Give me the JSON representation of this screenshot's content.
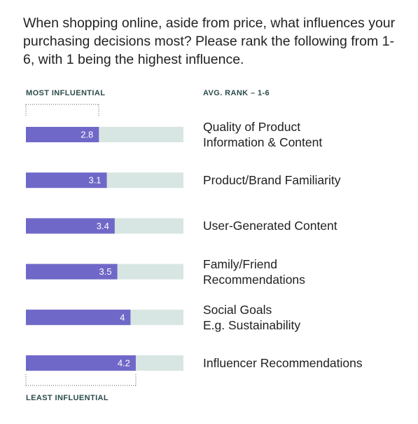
{
  "question": "When shopping online, aside from price, what influences your purchasing decisions most? Please rank the following from 1-6, with 1 being the highest influence.",
  "headers": {
    "most": "MOST INFLUENTIAL",
    "avg": "AVG. RANK – 1-6",
    "least": "LEAST INFLUENTIAL"
  },
  "colors": {
    "bar_fill": "#7068c8",
    "bar_track": "#d8e6e3",
    "dotted": "#555555",
    "value_text": "#ffffff"
  },
  "chart_data": {
    "type": "bar",
    "orientation": "horizontal",
    "title": "When shopping online, aside from price, what influences your purchasing decisions most? Please rank the following from 1-6, with 1 being the highest influence.",
    "categories": [
      "Quality of Product\nInformation & Content",
      "Product/Brand Familiarity",
      "User-Generated Content",
      "Family/Friend\nRecommendations",
      "Social Goals\nE.g. Sustainability",
      "Influencer Recommendations"
    ],
    "values": [
      2.8,
      3.1,
      3.4,
      3.5,
      4,
      4.2
    ],
    "value_labels": [
      "2.8",
      "3.1",
      "3.4",
      "3.5",
      "4",
      "4.2"
    ],
    "xlim": [
      0,
      6
    ],
    "xlabel": "AVG. RANK – 1-6",
    "grid": false,
    "legend": "none"
  }
}
